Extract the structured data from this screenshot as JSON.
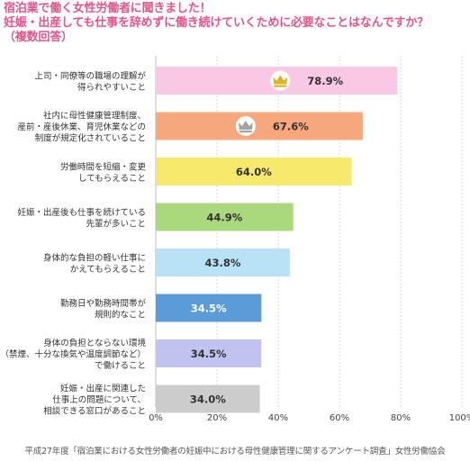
{
  "header": {
    "title_line1": "宿泊業で働く女性労働者に聞きました！",
    "title_line2": "妊娠・出産しても仕事を辞めずに働き続けていくために必要なことはなんですか？",
    "title_line3": "（複数回答）"
  },
  "footer": {
    "source": "平成27年度「宿泊業における女性労働者の妊娠中における母性健康管理に関するアンケート調査」女性労働協会"
  },
  "chart_data": {
    "type": "bar",
    "orientation": "horizontal",
    "categories": [
      [
        "上司・同僚等の職場の理解が",
        "得られやすいこと"
      ],
      [
        "社内に母性健康管理制度、",
        "産前・産後休業、育児休業などの",
        "制度が規定化されていること"
      ],
      [
        "労働時間を短縮・変更",
        "してもらえること"
      ],
      [
        "妊娠・出産後も仕事を続けている",
        "先輩が多いこと"
      ],
      [
        "身体的な負担の軽い仕事に",
        "かえてもらえること"
      ],
      [
        "勤務日や勤務時間帯が",
        "規則的なこと"
      ],
      [
        "身体の負担とならない環境",
        "（禁煙、十分な換気や温度調節など）",
        "で働けること"
      ],
      [
        "妊娠・出産に関連した",
        "仕事上の問題について、",
        "相談できる窓口があること"
      ]
    ],
    "values": [
      78.9,
      67.6,
      64.0,
      44.9,
      43.8,
      34.5,
      34.5,
      34.0
    ],
    "value_labels": [
      "78.9%",
      "67.6%",
      "64.0%",
      "44.9%",
      "43.8%",
      "34.5%",
      "34.5%",
      "34.0%"
    ],
    "bar_colors": [
      "#f8c8e4",
      "#f7a77c",
      "#f7e86e",
      "#a9d97c",
      "#b9e1f5",
      "#5b9bd8",
      "#c0c2ef",
      "#cccccc"
    ],
    "label_colors": [
      "#333333",
      "#333333",
      "#333333",
      "#333333",
      "#333333",
      "#ffffff",
      "#333333",
      "#333333"
    ],
    "crown_icons": [
      "gold-crown-icon",
      "silver-crown-icon",
      "",
      "",
      "",
      "",
      "",
      ""
    ],
    "crown_colors": [
      "#d9b527",
      "#a3a3a3"
    ],
    "x_ticks": [
      0,
      20,
      40,
      60,
      80,
      100
    ],
    "x_tick_labels": [
      "0%",
      "20%",
      "40%",
      "60%",
      "80%",
      "100%"
    ],
    "xlim": [
      0,
      100
    ],
    "grid": true,
    "title": "",
    "xlabel": "",
    "ylabel": ""
  }
}
